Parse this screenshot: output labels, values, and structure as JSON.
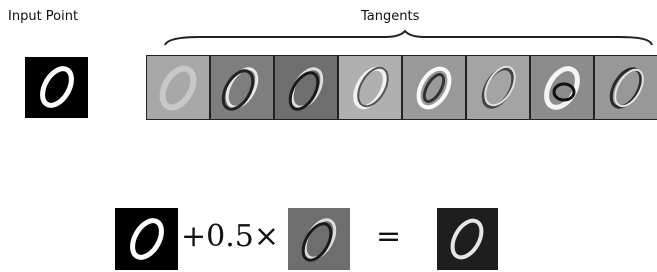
{
  "labels": {
    "input": "Input Point",
    "tangents": "Tangents"
  },
  "equation": {
    "scale": "+0.5×",
    "equals": "="
  }
}
